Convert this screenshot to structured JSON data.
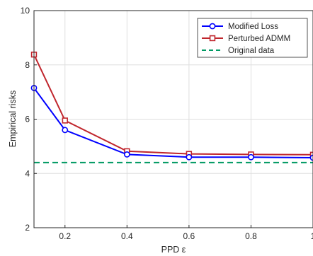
{
  "chart_data": {
    "type": "line",
    "xlabel": "PPD ε",
    "ylabel": "Empirical risks",
    "xlim": [
      0.1,
      1.0
    ],
    "ylim": [
      2,
      10
    ],
    "xticks": [
      0.2,
      0.4,
      0.6,
      0.8,
      1.0
    ],
    "xtick_labels": [
      "0.2",
      "0.4",
      "0.6",
      "0.8",
      "1"
    ],
    "yticks": [
      2,
      4,
      6,
      8,
      10
    ],
    "ytick_labels": [
      "2",
      "4",
      "6",
      "8",
      "10"
    ],
    "grid": true,
    "legend_position": "top-right",
    "x": [
      0.1,
      0.2,
      0.4,
      0.6,
      0.8,
      1.0
    ],
    "series": [
      {
        "name": "Modified Loss",
        "values": [
          7.15,
          5.6,
          4.7,
          4.6,
          4.6,
          4.58
        ],
        "color": "#0000ff",
        "marker": "circle",
        "style": "solid"
      },
      {
        "name": "Perturbed ADMM",
        "values": [
          8.38,
          5.95,
          4.82,
          4.72,
          4.7,
          4.69
        ],
        "color": "#c0262d",
        "marker": "square",
        "style": "solid"
      },
      {
        "name": "Original data",
        "values": [
          4.4,
          4.4,
          4.4,
          4.4,
          4.4,
          4.4
        ],
        "color": "#009a63",
        "marker": "none",
        "style": "dashed"
      }
    ]
  }
}
